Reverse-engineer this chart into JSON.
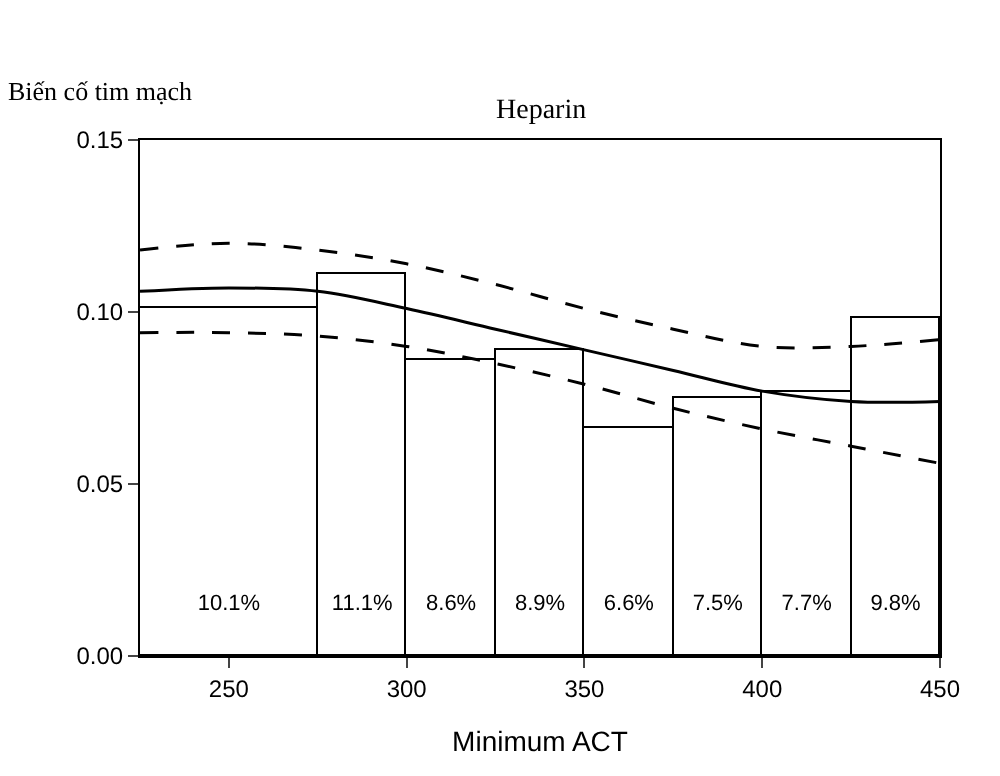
{
  "chart_data": {
    "type": "histogram",
    "title": "Heparin",
    "xlabel": "Minimum ACT",
    "ylabel": "Biến cố tim mạch",
    "xlim": [
      225,
      450
    ],
    "xticks": [
      250,
      300,
      350,
      400,
      450
    ],
    "ylim": [
      0,
      0.15
    ],
    "yticks": [
      {
        "value": 0,
        "label": "0.00"
      },
      {
        "value": 0.05,
        "label": "0.05"
      },
      {
        "value": 0.1,
        "label": "0.10"
      },
      {
        "value": 0.15,
        "label": "0.15"
      }
    ],
    "series": [
      {
        "color": "#ffffff",
        "bins": [
          225,
          275,
          300,
          325,
          350,
          375,
          400,
          425,
          450
        ],
        "values": [
          0.101,
          0.111,
          0.086,
          0.089,
          0.066,
          0.075,
          0.077,
          0.098
        ],
        "value_labels": [
          "10.1%",
          "11.1%",
          "8.6%",
          "8.9%",
          "6.6%",
          "7.5%",
          "7.7%",
          "9.8%"
        ]
      },
      {
        "type": "line",
        "color": "#000000",
        "line_style": "solid",
        "x": [
          225,
          250,
          275,
          300,
          325,
          350,
          375,
          400,
          425,
          450
        ],
        "values": [
          0.106,
          0.107,
          0.106,
          0.101,
          0.095,
          0.089,
          0.083,
          0.077,
          0.074,
          0.074
        ]
      },
      {
        "type": "line",
        "color": "#000000",
        "line_style": "dashed",
        "x": [
          225,
          250,
          275,
          300,
          325,
          350,
          375,
          400,
          425,
          450
        ],
        "values": [
          0.118,
          0.12,
          0.118,
          0.114,
          0.108,
          0.101,
          0.095,
          0.09,
          0.09,
          0.092
        ]
      },
      {
        "type": "line",
        "color": "#000000",
        "line_style": "dashed",
        "x": [
          225,
          250,
          275,
          300,
          325,
          350,
          375,
          400,
          425,
          450
        ],
        "values": [
          0.094,
          0.094,
          0.093,
          0.09,
          0.085,
          0.079,
          0.072,
          0.066,
          0.061,
          0.056
        ]
      }
    ]
  }
}
